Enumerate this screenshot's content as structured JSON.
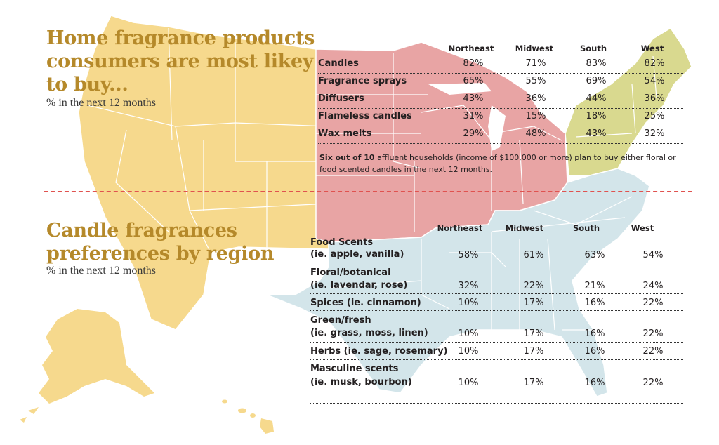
{
  "colors": {
    "heading": "#b5892a",
    "west": "#f6d98d",
    "midwest": "#e8a4a4",
    "northeast": "#d9d98f",
    "south": "#d3e5ea",
    "divider": "#e0524f"
  },
  "top": {
    "title_lines": [
      "Home fragrance products",
      "consumers are most likey",
      "to buy..."
    ],
    "subtitle": "% in the next 12 months"
  },
  "bottom": {
    "title_lines": [
      "Candle fragrances",
      "preferences by region"
    ],
    "subtitle": "% in the next 12 months"
  },
  "note": {
    "bold": "Six out of 10",
    "line1": " affluent households (income of $100,000 or more) plan to buy either floral or",
    "line2": "food scented candles in the next 12 months."
  },
  "chart_data": [
    {
      "type": "table",
      "title": "Home fragrance products consumers are most likey to buy...",
      "columns": [
        "Northeast",
        "Midwest",
        "South",
        "West"
      ],
      "rows": [
        {
          "label": "Candles",
          "values": [
            "82%",
            "71%",
            "83%",
            "82%"
          ]
        },
        {
          "label": "Fragrance sprays",
          "values": [
            "65%",
            "55%",
            "69%",
            "54%"
          ]
        },
        {
          "label": "Diffusers",
          "values": [
            "43%",
            "36%",
            "44%",
            "36%"
          ]
        },
        {
          "label": "Flameless candles",
          "values": [
            "31%",
            "15%",
            "18%",
            "25%"
          ]
        },
        {
          "label": "Wax melts",
          "values": [
            "29%",
            "48%",
            "43%",
            "32%"
          ]
        }
      ]
    },
    {
      "type": "table",
      "title": "Candle fragrances preferences by region",
      "columns": [
        "Northeast",
        "Midwest",
        "South",
        "West"
      ],
      "rows": [
        {
          "label": "Food Scents",
          "label2": "(ie. apple, vanilla)",
          "values": [
            "58%",
            "61%",
            "63%",
            "54%"
          ]
        },
        {
          "label": "Floral/botanical",
          "label2": "(ie. lavendar, rose)",
          "values": [
            "32%",
            "22%",
            "21%",
            "24%"
          ]
        },
        {
          "label": "Spices (ie. cinnamon)",
          "label2": "",
          "values": [
            "10%",
            "17%",
            "16%",
            "22%"
          ]
        },
        {
          "label": "Green/fresh",
          "label2": "(ie. grass, moss, linen)",
          "values": [
            "10%",
            "17%",
            "16%",
            "22%"
          ]
        },
        {
          "label": "Herbs (ie. sage, rosemary)",
          "label2": "",
          "values": [
            "10%",
            "17%",
            "16%",
            "22%"
          ]
        },
        {
          "label": "Masculine scents",
          "label2": "(ie. musk, bourbon)",
          "values": [
            "10%",
            "17%",
            "16%",
            "22%"
          ]
        }
      ]
    }
  ]
}
